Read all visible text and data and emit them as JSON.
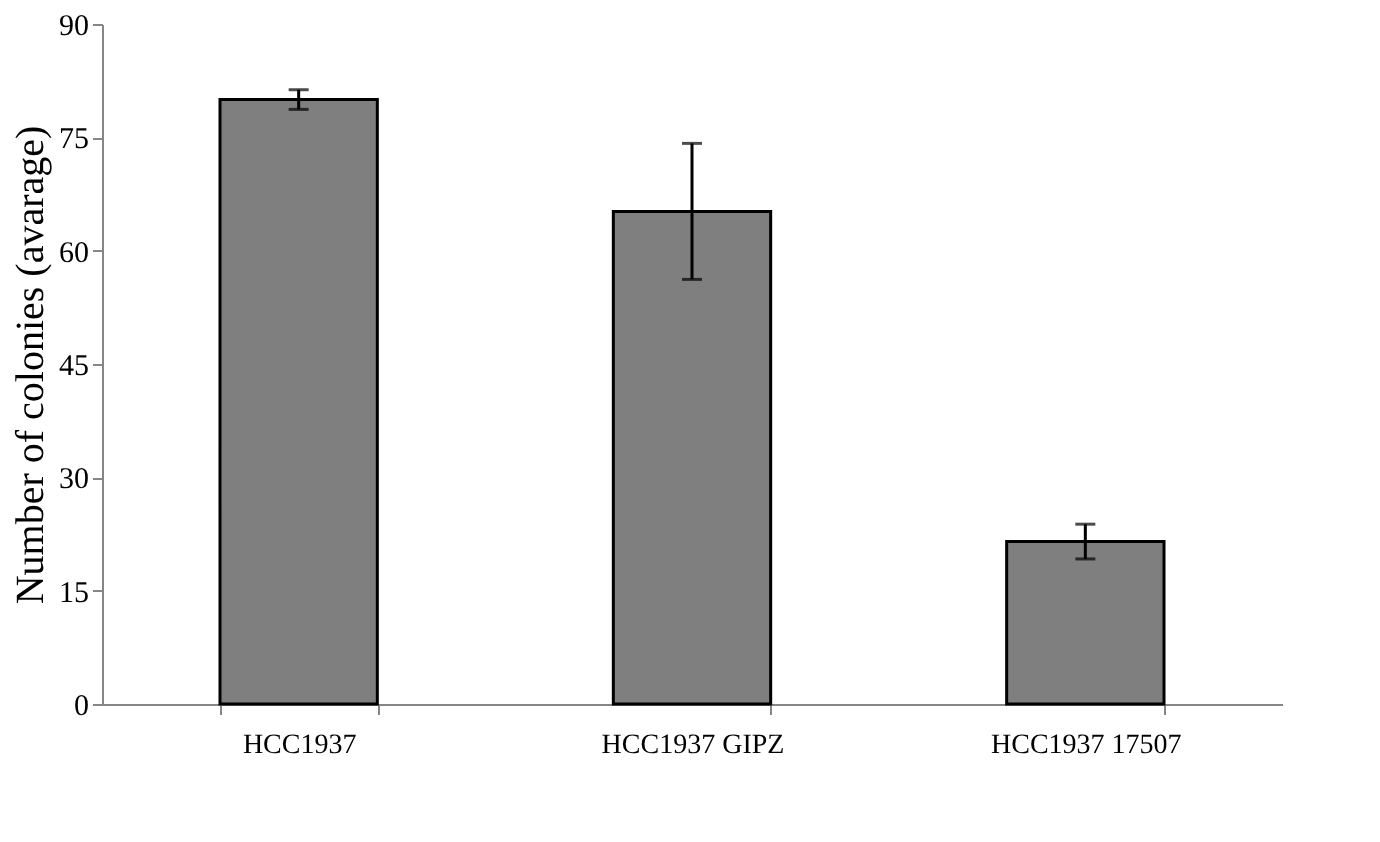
{
  "chart_data": {
    "type": "bar",
    "ylabel": "Number of colonies (avarage)",
    "categories": [
      "HCC1937",
      "HCC1937  GIPZ",
      "HCC1937 17507"
    ],
    "values": [
      80,
      65.2,
      21.5
    ],
    "errors": [
      1.3,
      9,
      2.3
    ],
    "color": "#7f7f7f",
    "ylim": [
      0,
      90
    ],
    "yticks": [
      0,
      15,
      30,
      45,
      60,
      75,
      90
    ],
    "grid": false
  }
}
